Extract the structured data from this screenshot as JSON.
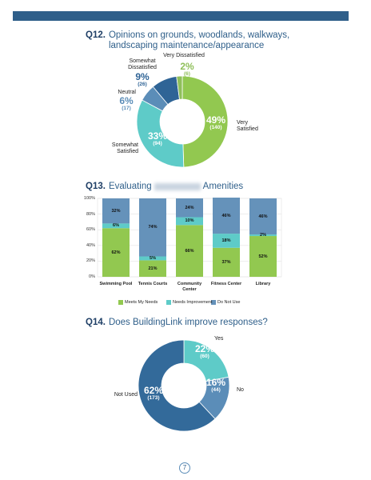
{
  "chart_data": [
    {
      "type": "donut",
      "number": "Q12.",
      "title": "Opinions on grounds, woodlands, walkways, landscaping maintenance/appearance",
      "categories": [
        "Very Satisfied",
        "Somewhat Satisfied",
        "Neutral",
        "Somewhat Dissatisfied",
        "Very Dissatisfied"
      ],
      "values": [
        49,
        33,
        6,
        9,
        2
      ],
      "value_labels": [
        "49%",
        "33%",
        "6%",
        "9%",
        "2%"
      ],
      "count_labels": [
        "(140)",
        "(94)",
        "(17)",
        "(26)",
        "(6)"
      ],
      "colors": [
        "#92c850",
        "#5ecbc8",
        "#5b8db8",
        "#2f6496",
        "#8fbf5a"
      ]
    },
    {
      "type": "bar",
      "stacked": true,
      "number": "Q13.",
      "title": "Evaluating",
      "title_end": "Amenities",
      "categories": [
        "Swimming Pool",
        "Tennis Courts",
        "Community Center",
        "Fitness Center",
        "Library"
      ],
      "series": [
        {
          "name": "Meets My Needs",
          "color": "#92c850",
          "values": [
            62,
            21,
            66,
            37,
            52
          ],
          "value_labels": [
            "62%",
            "21%",
            "66%",
            "37%",
            "52%"
          ]
        },
        {
          "name": "Needs Improvement",
          "color": "#5ecbc8",
          "values": [
            6,
            5,
            10,
            18,
            2
          ],
          "value_labels": [
            "6%",
            "5%",
            "10%",
            "18%",
            "2%"
          ]
        },
        {
          "name": "Do Not Use",
          "color": "#6592ba",
          "values": [
            32,
            74,
            24,
            46,
            46
          ],
          "value_labels": [
            "32%",
            "74%",
            "24%",
            "46%",
            "46%"
          ]
        }
      ],
      "ylim": [
        0,
        100
      ],
      "yticks": [
        {
          "value": 0,
          "label": "0%"
        },
        {
          "value": 20,
          "label": "20%"
        },
        {
          "value": 40,
          "label": "40%"
        },
        {
          "value": 60,
          "label": "60%"
        },
        {
          "value": 80,
          "label": "80%"
        },
        {
          "value": 100,
          "label": "100%"
        }
      ],
      "grid": true,
      "legend": "bottom"
    },
    {
      "type": "donut",
      "number": "Q14.",
      "title": "Does BuildingLink improve responses?",
      "categories": [
        "Yes",
        "No",
        "Not Used"
      ],
      "values": [
        22,
        16,
        62
      ],
      "value_labels": [
        "22%",
        "16%",
        "62%"
      ],
      "count_labels": [
        "(60)",
        "(44)",
        "(173)"
      ],
      "colors": [
        "#5ecbc8",
        "#5b8db8",
        "#336a9a"
      ]
    }
  ],
  "page_number": 7
}
